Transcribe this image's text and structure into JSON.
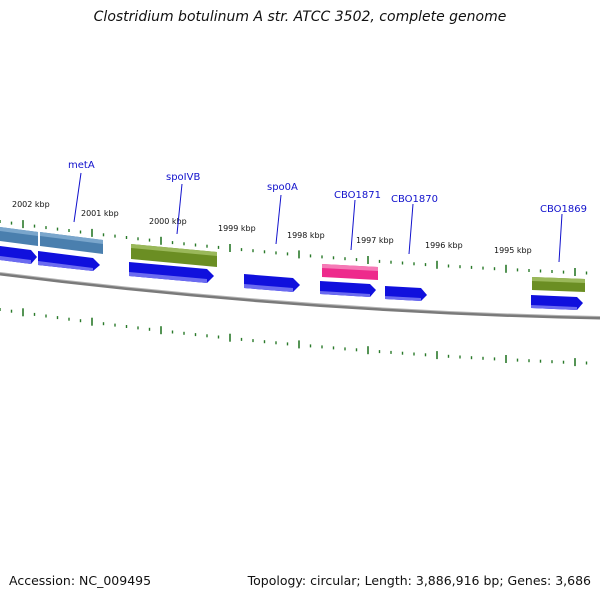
{
  "title": "Clostridium botulinum A str. ATCC 3502, complete genome",
  "accession": "Accession: NC_009495",
  "summary": "Topology: circular; Length: 3,886,916 bp; Genes: 3,686",
  "tick_labels": [
    "2002 kbp",
    "2001 kbp",
    "2000 kbp",
    "1999 kbp",
    "1998 kbp",
    "1997 kbp",
    "1996 kbp",
    "1995 kbp"
  ],
  "gene_labels": [
    "metA",
    "spoIVB",
    "spo0A",
    "CBO1871",
    "CBO1870",
    "CBO1869"
  ],
  "colors": {
    "cds_forward": "#1010dd",
    "cds_steelblue": "#4a7fae",
    "cds_olive": "#6b8e23",
    "cds_pink": "#ee2a8c",
    "backbone": "#777777",
    "ticks": "#2a7a2a",
    "label": "#1111cc"
  }
}
